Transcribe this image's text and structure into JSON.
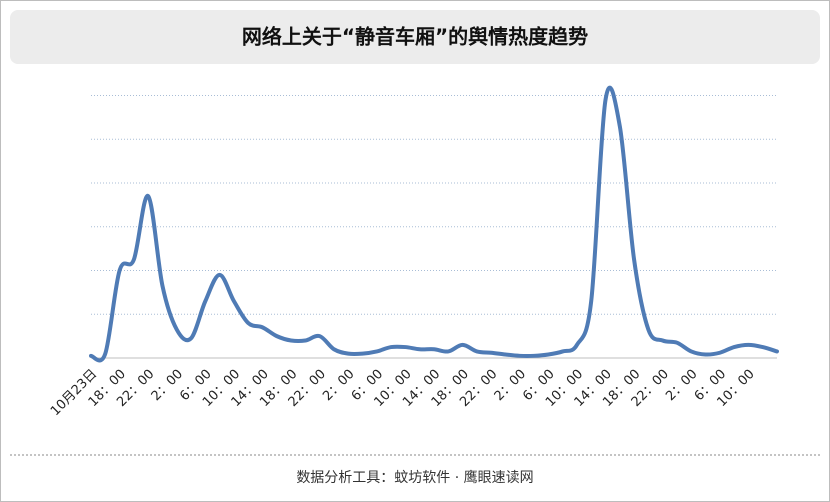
{
  "chart_data": {
    "type": "line",
    "title": "网络上关于“静音车厢”的舆情热度趋势",
    "footer": "数据分析工具：蚊坊软件 · 鹰眼速读网",
    "categories": [
      "10月23日",
      null,
      "18：00",
      null,
      "22：00",
      null,
      "2：00",
      null,
      "6：00",
      null,
      "10：00",
      null,
      "14：00",
      null,
      "18：00",
      null,
      "22：00",
      null,
      "2：00",
      null,
      "6：00",
      null,
      "10：00",
      null,
      "14：00",
      null,
      "18：00",
      null,
      "22：00",
      null,
      "2：00",
      null,
      "6：00",
      null,
      "10：00",
      null,
      "14：00",
      null,
      "18：00",
      null,
      "22：00",
      null,
      "2：00",
      null,
      "6：00",
      null,
      "10：00",
      null,
      null
    ],
    "series": [
      {
        "color": "#4f7bb5",
        "values": [
          0.05,
          0.1,
          2.0,
          2.25,
          3.7,
          1.65,
          0.65,
          0.45,
          1.3,
          1.9,
          1.3,
          0.8,
          0.7,
          0.5,
          0.4,
          0.4,
          0.5,
          0.2,
          0.1,
          0.1,
          0.15,
          0.25,
          0.25,
          0.2,
          0.2,
          0.15,
          0.3,
          0.15,
          0.12,
          0.08,
          0.05,
          0.05,
          0.08,
          0.15,
          0.3,
          1.3,
          5.9,
          5.3,
          2.25,
          0.65,
          0.4,
          0.35,
          0.15,
          0.08,
          0.12,
          0.25,
          0.3,
          0.25,
          0.15
        ]
      }
    ],
    "ylim": [
      0,
      6.4
    ],
    "yticks": [
      0,
      1,
      2,
      3,
      4,
      5,
      6
    ],
    "grid": true
  }
}
